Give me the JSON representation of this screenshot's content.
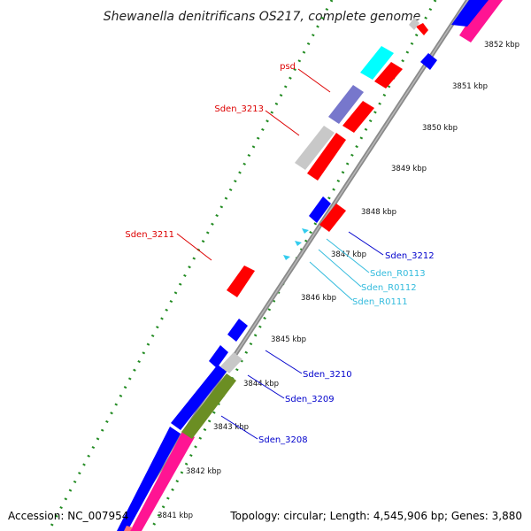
{
  "title": "Shewanella denitrificans OS217, complete genome",
  "footer": {
    "accession": "Accession: NC_007954",
    "topology": "Topology: circular; Length: 4,545,906 bp; Genes: 3,880"
  },
  "colors": {
    "backbone": "#8a8a8a",
    "forward_cds": "#ff0000",
    "reverse_cds": "#0000ff",
    "trna": "#33ccee",
    "rrna_or_misc": "#00ffff",
    "pseudogene": "#c8c8c8",
    "hypothetical": "#7777cc",
    "pink_track": "#ff1493",
    "olive_track": "#6b8e23",
    "gc_skew_dots": "#228b22",
    "label_red": "#dd0000",
    "label_blue": "#0000cc",
    "label_cyan": "#33bbdd"
  },
  "kbp_ticks": [
    "3852 kbp",
    "3851 kbp",
    "3850 kbp",
    "3849 kbp",
    "3848 kbp",
    "3847 kbp",
    "3846 kbp",
    "3845 kbp",
    "3844 kbp",
    "3843 kbp",
    "3842 kbp",
    "3841 kbp"
  ],
  "gene_labels": {
    "psd": "psd",
    "sden_3213": "Sden_3213",
    "sden_3211": "Sden_3211",
    "sden_3212": "Sden_3212",
    "sden_r0113": "Sden_R0113",
    "sden_r0112": "Sden_R0112",
    "sden_r0111": "Sden_R0111",
    "sden_3210": "Sden_3210",
    "sden_3209": "Sden_3209",
    "sden_3208": "Sden_3208"
  }
}
